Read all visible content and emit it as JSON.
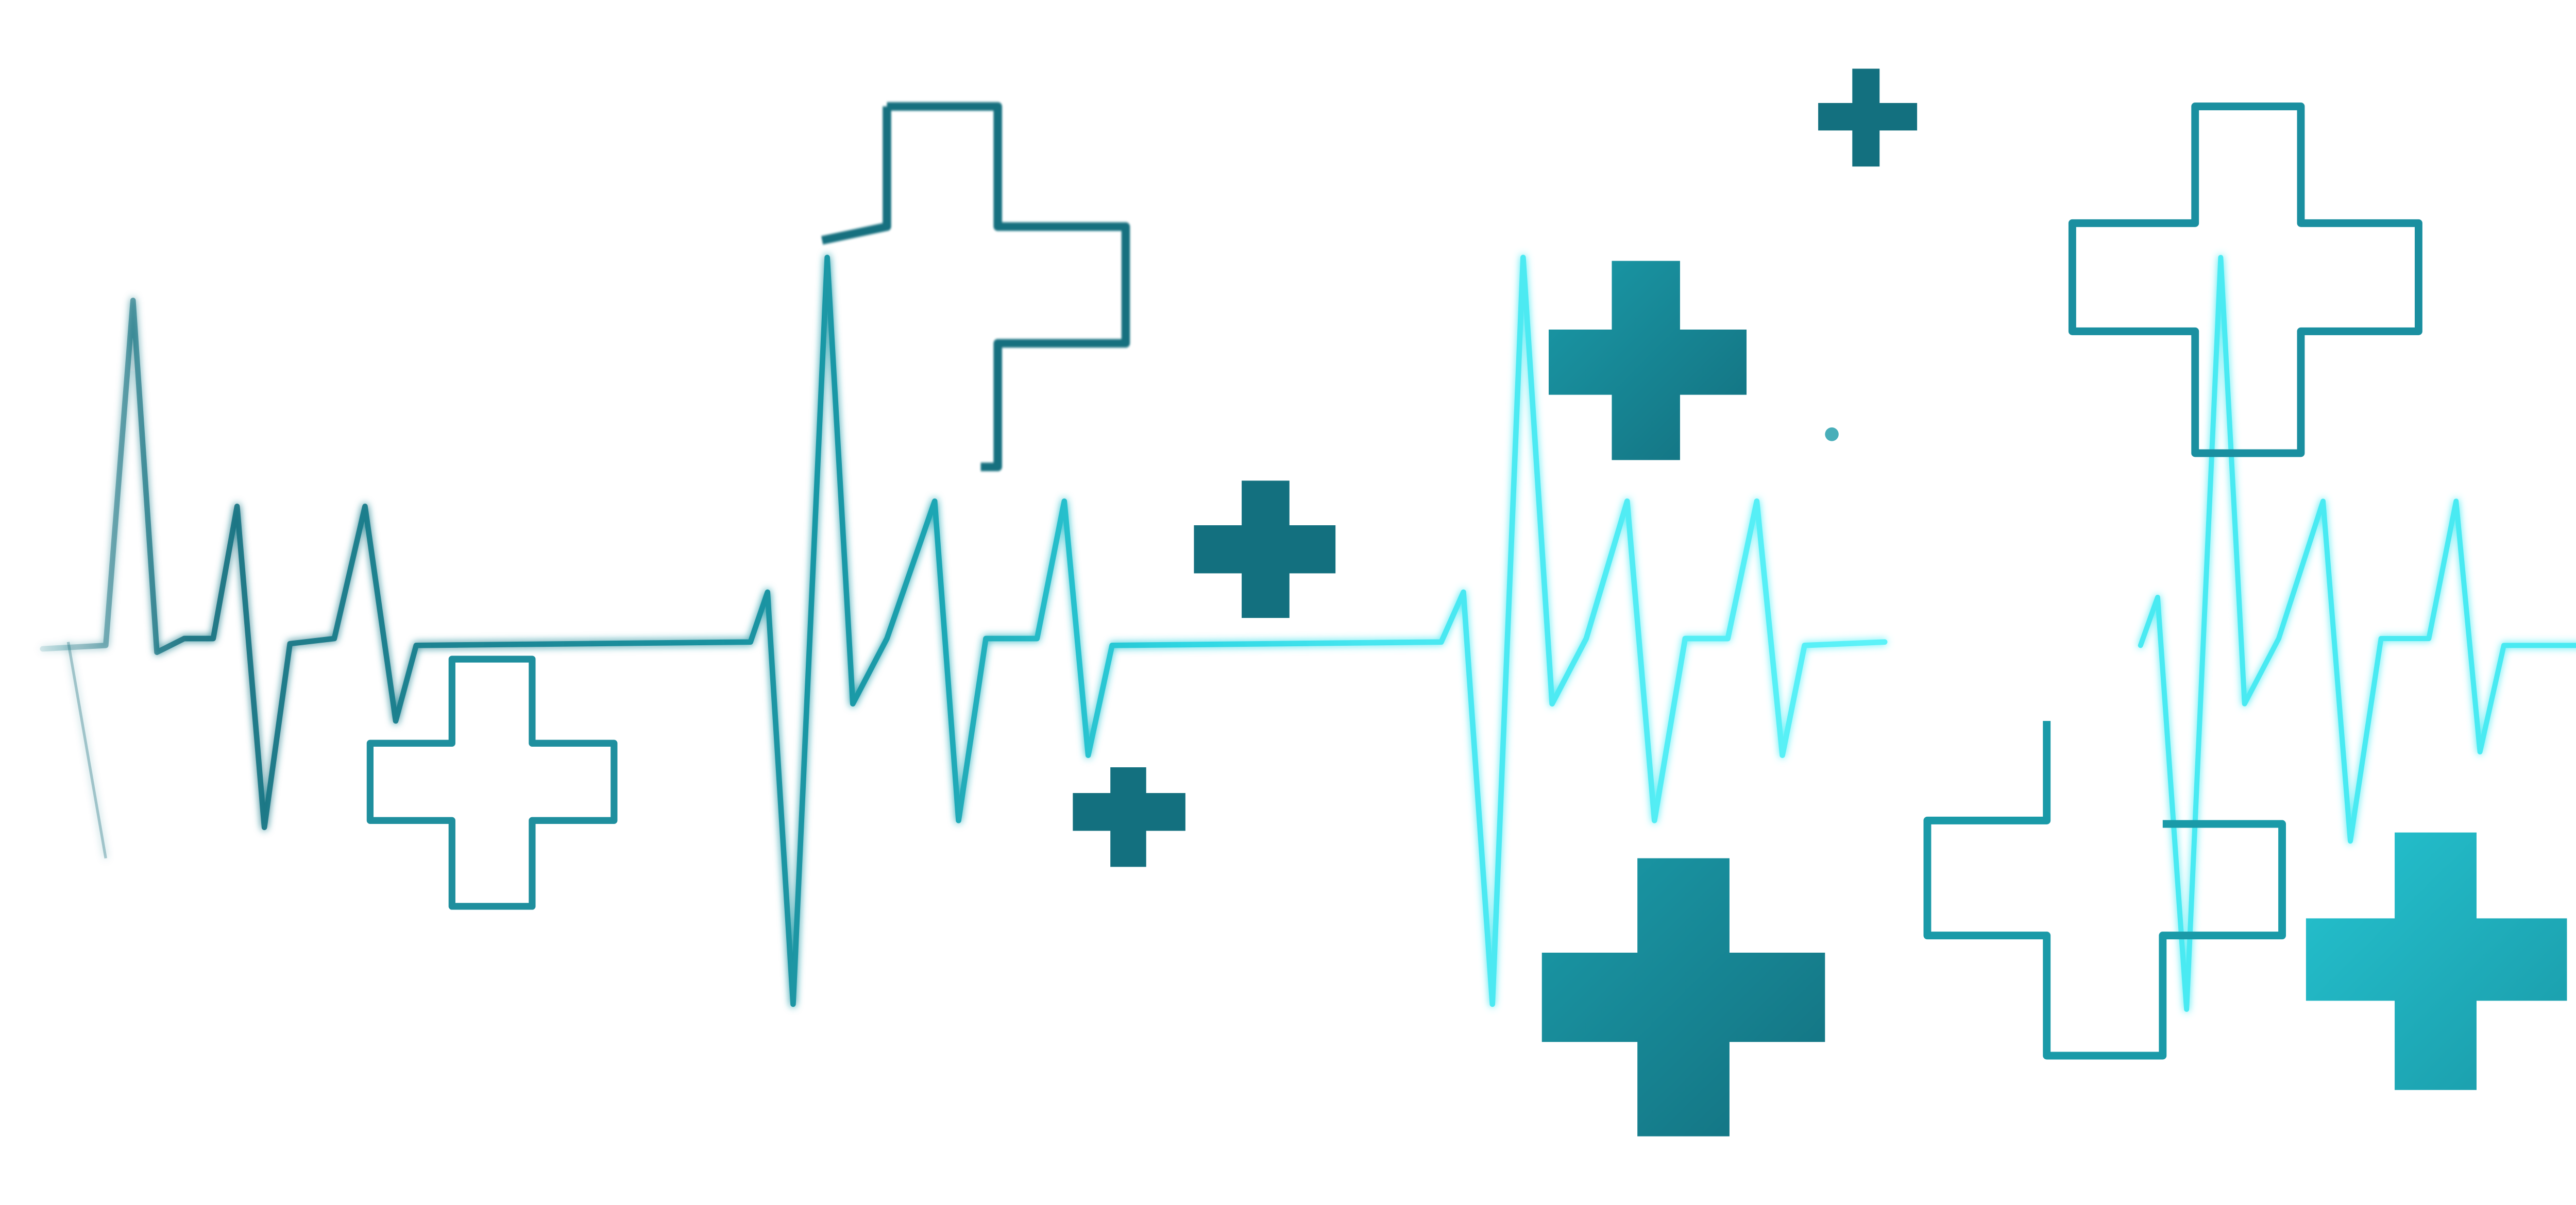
{
  "colors": {
    "background": "#ffffff",
    "teal_dark": "#13707f",
    "teal_mid": "#1a9aa8",
    "teal_light": "#25c3d0",
    "cyan_bright": "#46e6f0"
  },
  "icons": [
    "heartbeat-line-icon",
    "medical-cross-icon",
    "outline-cross-icon",
    "dot-icon"
  ]
}
